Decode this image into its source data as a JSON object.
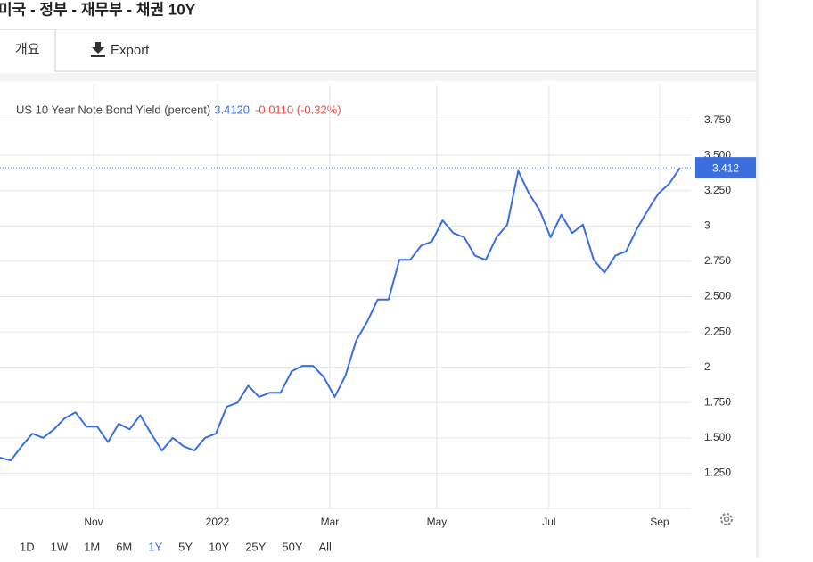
{
  "header": {
    "title": "미국 - 정부 - 재무부 - 채권 10Y"
  },
  "tabs": {
    "overview": "개요",
    "export": "Export"
  },
  "chart_data": {
    "type": "line",
    "series": [
      {
        "name": "US 10 Year Note Bond Yield (percent)",
        "color": "#3b6fe0",
        "values": [
          1.36,
          1.34,
          1.44,
          1.53,
          1.5,
          1.56,
          1.64,
          1.68,
          1.58,
          1.58,
          1.47,
          1.6,
          1.56,
          1.66,
          1.53,
          1.41,
          1.5,
          1.44,
          1.41,
          1.5,
          1.53,
          1.72,
          1.75,
          1.87,
          1.79,
          1.82,
          1.82,
          1.97,
          2.01,
          2.01,
          1.93,
          1.79,
          1.94,
          2.19,
          2.32,
          2.48,
          2.48,
          2.76,
          2.76,
          2.86,
          2.89,
          3.04,
          2.95,
          2.92,
          2.79,
          2.76,
          2.92,
          3.01,
          3.39,
          3.23,
          3.11,
          2.92,
          3.08,
          2.95,
          3.01,
          2.76,
          2.67,
          2.79,
          2.82,
          2.98,
          3.11,
          3.23,
          3.3,
          3.412
        ]
      }
    ],
    "legend_value": "3.4120",
    "legend_change": "-0.0110 (-0.32%)",
    "last_label": "3.412",
    "xlim": [
      0,
      64
    ],
    "xticks": [
      {
        "value": 8.67,
        "label": "Nov"
      },
      {
        "value": 20.15,
        "label": "2022"
      },
      {
        "value": 30.55,
        "label": "Mar"
      },
      {
        "value": 40.46,
        "label": "May"
      },
      {
        "value": 50.86,
        "label": "Jul"
      },
      {
        "value": 61.1,
        "label": "Sep"
      }
    ],
    "ylim": [
      1.0,
      4.0
    ],
    "yticks": [
      {
        "value": 1.25,
        "label": "1.250"
      },
      {
        "value": 1.5,
        "label": "1.500"
      },
      {
        "value": 1.75,
        "label": "1.750"
      },
      2,
      {
        "value": 2.25,
        "label": "2.250"
      },
      {
        "value": 2.5,
        "label": "2.500"
      },
      {
        "value": 2.75,
        "label": "2.750"
      },
      3,
      {
        "value": 3.25,
        "label": "3.250"
      },
      {
        "value": 3.5,
        "label": "3.500"
      },
      {
        "value": 3.75,
        "label": "3.750"
      }
    ],
    "grid": true,
    "ranges": [
      "1D",
      "1W",
      "1M",
      "6M",
      "1Y",
      "5Y",
      "10Y",
      "25Y",
      "50Y",
      "All"
    ],
    "active_range": "1Y"
  }
}
